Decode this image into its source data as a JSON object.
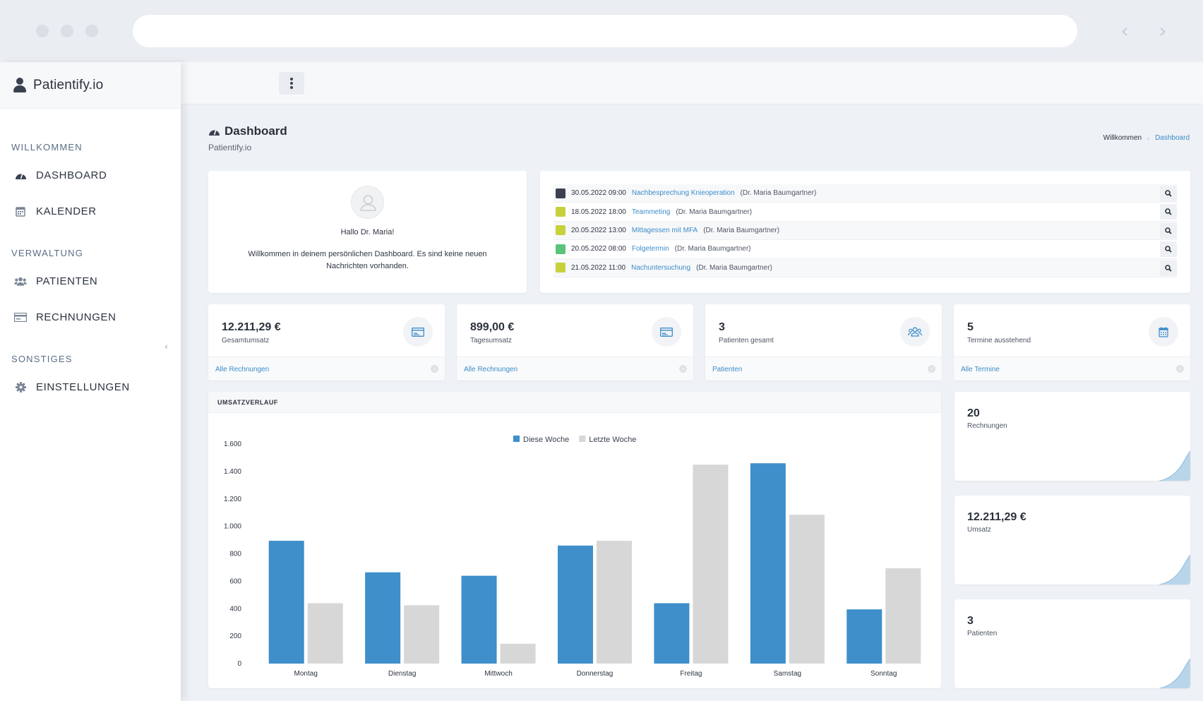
{
  "brand": {
    "name": "Patientify.io"
  },
  "sidebar": {
    "sections": [
      {
        "title": "WILLKOMMEN",
        "items": [
          {
            "label": "DASHBOARD",
            "icon": "dashboard-icon"
          },
          {
            "label": "KALENDER",
            "icon": "calendar-icon"
          }
        ]
      },
      {
        "title": "VERWALTUNG",
        "items": [
          {
            "label": "PATIENTEN",
            "icon": "users-icon"
          },
          {
            "label": "RECHNUNGEN",
            "icon": "invoice-icon"
          }
        ]
      },
      {
        "title": "SONSTIGES",
        "items": [
          {
            "label": "EINSTELLUNGEN",
            "icon": "gear-icon"
          }
        ]
      }
    ]
  },
  "page": {
    "title": "Dashboard",
    "subtitle": "Patientify.io"
  },
  "breadcrumb": [
    "Willkommen",
    "Dashboard"
  ],
  "welcome": {
    "greeting": "Hallo Dr. Maria!",
    "message": "Willkommen in deinem persönlichen Dashboard. Es sind keine neuen Nachrichten vorhanden."
  },
  "appointments": [
    {
      "datetime": "30.05.2022 09:00",
      "title": "Nachbesprechung Knieoperation",
      "doctor": "(Dr. Maria Baumgartner)",
      "color": "#3b4150"
    },
    {
      "datetime": "18.05.2022 18:00",
      "title": "Teammeting",
      "doctor": "(Dr. Maria Baumgartner)",
      "color": "#c7d23a"
    },
    {
      "datetime": "20.05.2022 13:00",
      "title": "Mittagessen mit MFA",
      "doctor": "(Dr. Maria Baumgartner)",
      "color": "#c7d23a"
    },
    {
      "datetime": "20.05.2022 08:00",
      "title": "Folgetermin",
      "doctor": "(Dr. Maria Baumgartner)",
      "color": "#5bc47a"
    },
    {
      "datetime": "21.05.2022 11:00",
      "title": "Nachuntersuchung",
      "doctor": "(Dr. Maria Baumgartner)",
      "color": "#c7d23a"
    }
  ],
  "stats": [
    {
      "value": "12.211,29 €",
      "label": "Gesamtumsatz",
      "link": "Alle Rechnungen",
      "icon": "invoice-icon"
    },
    {
      "value": "899,00 €",
      "label": "Tagesumsatz",
      "link": "Alle Rechnungen",
      "icon": "invoice-icon"
    },
    {
      "value": "3",
      "label": "Patienten gesamt",
      "link": "Patienten",
      "icon": "users-icon"
    },
    {
      "value": "5",
      "label": "Termine ausstehend",
      "link": "Alle Termine",
      "icon": "calendar-icon"
    }
  ],
  "chart_card": {
    "title": "UMSATZVERLAUF"
  },
  "chart_data": {
    "type": "bar",
    "title": "",
    "xlabel": "",
    "ylabel": "",
    "categories": [
      "Montag",
      "Dienstag",
      "Mittwoch",
      "Donnerstag",
      "Freitag",
      "Samstag",
      "Sonntag"
    ],
    "series": [
      {
        "name": "Diese Woche",
        "color": "#3e8fca",
        "values": [
          895,
          665,
          640,
          860,
          440,
          1460,
          395
        ]
      },
      {
        "name": "Letzte Woche",
        "color": "#d7d7d7",
        "values": [
          440,
          425,
          145,
          895,
          1450,
          1085,
          695
        ]
      }
    ],
    "ylim": [
      0,
      1600
    ],
    "yticks": [
      0,
      200,
      400,
      600,
      800,
      1000,
      1200,
      1400,
      1600
    ],
    "ytick_labels": [
      "0",
      "200",
      "400",
      "600",
      "800",
      "1.000",
      "1.200",
      "1.400",
      "1.600"
    ],
    "legend_position": "top-center",
    "grid": false
  },
  "mini_cards": [
    {
      "value": "20",
      "label": "Rechnungen"
    },
    {
      "value": "12.211,29 €",
      "label": "Umsatz"
    },
    {
      "value": "3",
      "label": "Patienten"
    }
  ],
  "colors": {
    "accent": "#3c8dc9",
    "bar_primary": "#3e8fca",
    "bar_secondary": "#d7d7d7",
    "spark_fill": "#b9d5ea"
  }
}
